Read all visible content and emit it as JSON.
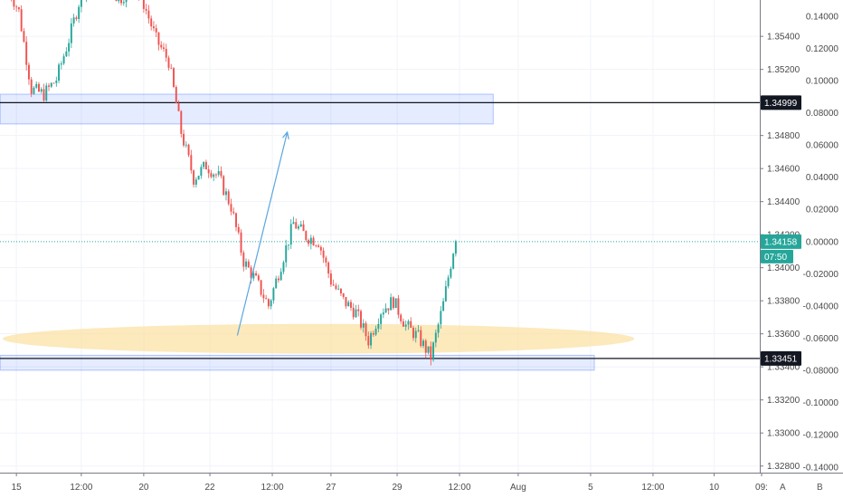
{
  "chart_data": {
    "type": "candlestick",
    "y_range": [
      1.3276,
      1.3562
    ],
    "pct_range": [
      -0.1435,
      0.15
    ],
    "price_ticks": [
      "1.35400",
      "1.35200",
      "1.34800",
      "1.34600",
      "1.34400",
      "1.34200",
      "1.34000",
      "1.33800",
      "1.33600",
      "1.33400",
      "1.33200",
      "1.33000",
      "1.32800"
    ],
    "pct_ticks": [
      "0.14000",
      "0.12000",
      "0.10000",
      "0.08000",
      "0.06000",
      "0.04000",
      "0.02000",
      "0.00000",
      "-0.02000",
      "-0.04000",
      "-0.06000",
      "-0.08000",
      "-0.10000",
      "-0.12000",
      "-0.14000"
    ],
    "x_ticks": [
      "15",
      "12:00",
      "20",
      "22",
      "12:00",
      "27",
      "29",
      "12:00",
      "Aug",
      "5",
      "12:00",
      "10",
      "09:"
    ],
    "x_tick_slots": [
      0.3,
      5.5,
      10.5,
      15.8,
      20.8,
      25.5,
      30.8,
      35.8,
      40.5,
      46.3,
      51.3,
      56.2,
      60.0
    ],
    "series": [
      {
        "x": 0,
        "y": 1.3572
      },
      {
        "x": 1,
        "y": 1.3555
      },
      {
        "x": 2,
        "y": 1.3508
      },
      {
        "x": 3,
        "y": 1.3505
      },
      {
        "x": 4,
        "y": 1.3514
      },
      {
        "x": 5,
        "y": 1.3538
      },
      {
        "x": 6,
        "y": 1.3566
      },
      {
        "x": 7,
        "y": 1.358
      },
      {
        "x": 8,
        "y": 1.3575
      },
      {
        "x": 9,
        "y": 1.3562
      },
      {
        "x": 10,
        "y": 1.357
      },
      {
        "x": 11,
        "y": 1.356
      },
      {
        "x": 12,
        "y": 1.3538
      },
      {
        "x": 13,
        "y": 1.3525
      },
      {
        "x": 14,
        "y": 1.3482
      },
      {
        "x": 15,
        "y": 1.3454
      },
      {
        "x": 16,
        "y": 1.3462
      },
      {
        "x": 17,
        "y": 1.3455
      },
      {
        "x": 18,
        "y": 1.3437
      },
      {
        "x": 19,
        "y": 1.3404
      },
      {
        "x": 20,
        "y": 1.3392
      },
      {
        "x": 21,
        "y": 1.3377
      },
      {
        "x": 22,
        "y": 1.3402
      },
      {
        "x": 23,
        "y": 1.3427
      },
      {
        "x": 24,
        "y": 1.3419
      },
      {
        "x": 25,
        "y": 1.3416
      },
      {
        "x": 26,
        "y": 1.3392
      },
      {
        "x": 27,
        "y": 1.338
      },
      {
        "x": 28,
        "y": 1.3373
      },
      {
        "x": 29,
        "y": 1.3356
      },
      {
        "x": 30,
        "y": 1.3374
      },
      {
        "x": 31,
        "y": 1.338
      },
      {
        "x": 32,
        "y": 1.3365
      },
      {
        "x": 33,
        "y": 1.3358
      },
      {
        "x": 34,
        "y": 1.3346
      },
      {
        "x": 35,
        "y": 1.3378
      },
      {
        "x": 36,
        "y": 1.3419
      }
    ],
    "levels": [
      {
        "label": "1.34999",
        "price": 1.34999,
        "color": "#131722",
        "text_color": "#ffffff"
      },
      {
        "label": "1.33451",
        "price": 1.33451,
        "color": "#131722",
        "text_color": "#ffffff"
      }
    ],
    "current_price": {
      "label": "1.34158",
      "price": 1.34158,
      "countdown": "07:50",
      "color": "#26a69a"
    },
    "zones": [
      {
        "price_top": 1.3505,
        "price_bottom": 1.3487,
        "slot_start": -1,
        "slot_end": 38.5,
        "color": "#2962ff"
      },
      {
        "price_top": 1.3347,
        "price_bottom": 1.3338,
        "slot_start": -1,
        "slot_end": 46.6,
        "color": "#2962ff"
      }
    ],
    "ellipse": {
      "slot_center": 24.5,
      "price_center": 1.3357,
      "slot_radius": 25.3,
      "price_radius": 0.0009,
      "color": "#fbe1a6"
    },
    "arrow": {
      "from": {
        "slot": 18,
        "price": 1.3359
      },
      "to": {
        "slot": 22,
        "price": 1.3482
      },
      "color": "#5aa6e0"
    },
    "colors": {
      "up": "#26a69a",
      "down": "#ef5350",
      "grid": "#f0f3fa",
      "axis": "#787b86",
      "bg": "#ffffff"
    }
  },
  "axis_buttons": {
    "auto": "A",
    "log": "B"
  }
}
